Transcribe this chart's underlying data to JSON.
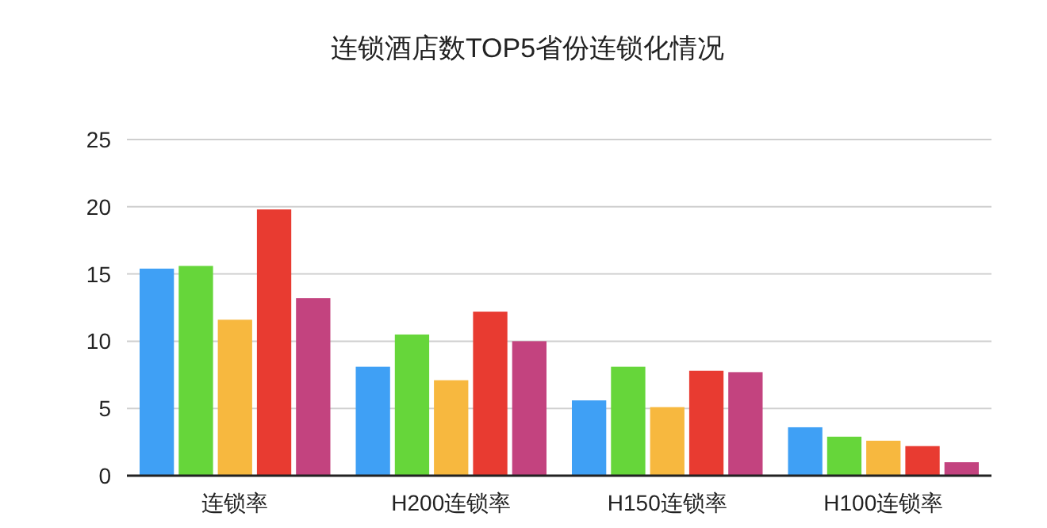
{
  "chart_data": {
    "type": "bar",
    "title": "连锁酒店数TOP5省份连锁化情况",
    "categories": [
      "连锁率",
      "H200连锁率",
      "H150连锁率",
      "H100连锁率"
    ],
    "series": [
      {
        "color": "#3fa0f5",
        "values": [
          15.4,
          8.1,
          5.6,
          3.6
        ]
      },
      {
        "color": "#66d63a",
        "values": [
          15.6,
          10.5,
          8.1,
          2.9
        ]
      },
      {
        "color": "#f7b83f",
        "values": [
          11.6,
          7.1,
          5.1,
          2.6
        ]
      },
      {
        "color": "#e83b31",
        "values": [
          19.8,
          12.2,
          7.8,
          2.2
        ]
      },
      {
        "color": "#c3437f",
        "values": [
          13.2,
          10.0,
          7.7,
          1.0
        ]
      }
    ],
    "ylim": [
      0,
      25
    ],
    "yticks": [
      0,
      5,
      10,
      15,
      20,
      25
    ],
    "grid": "y"
  }
}
